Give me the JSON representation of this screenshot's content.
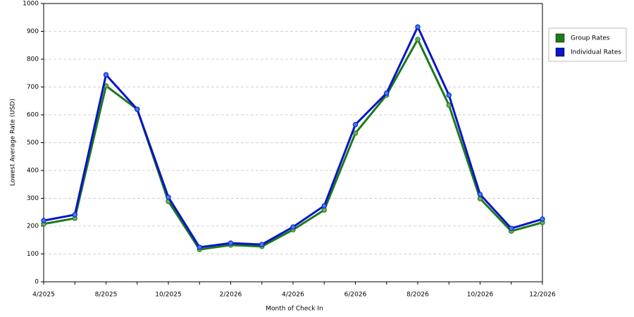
{
  "chart_data": {
    "type": "line",
    "xlabel": "Month of Check In",
    "ylabel": "Lowest Average Rate (USD)",
    "categories": [
      "4/2025",
      null,
      "8/2025",
      null,
      "10/2025",
      null,
      "2/2026",
      null,
      "4/2026",
      null,
      "6/2026",
      null,
      "8/2026",
      null,
      "10/2026",
      null,
      "12/2026"
    ],
    "series": [
      {
        "name": "Group Rates",
        "color": "#1a7a1a",
        "values": [
          208,
          228,
          704,
          620,
          289,
          116,
          132,
          127,
          187,
          258,
          534,
          671,
          871,
          635,
          299,
          182,
          213
        ]
      },
      {
        "name": "Individual Rates",
        "color": "#0a14c8",
        "values": [
          220,
          241,
          744,
          620,
          304,
          124,
          139,
          134,
          197,
          273,
          565,
          678,
          916,
          671,
          314,
          192,
          225
        ]
      }
    ],
    "ylim": [
      0,
      1000
    ],
    "yticks": [
      0,
      100,
      200,
      300,
      400,
      500,
      600,
      700,
      800,
      900,
      1000
    ],
    "grid": true,
    "legend": "right"
  }
}
